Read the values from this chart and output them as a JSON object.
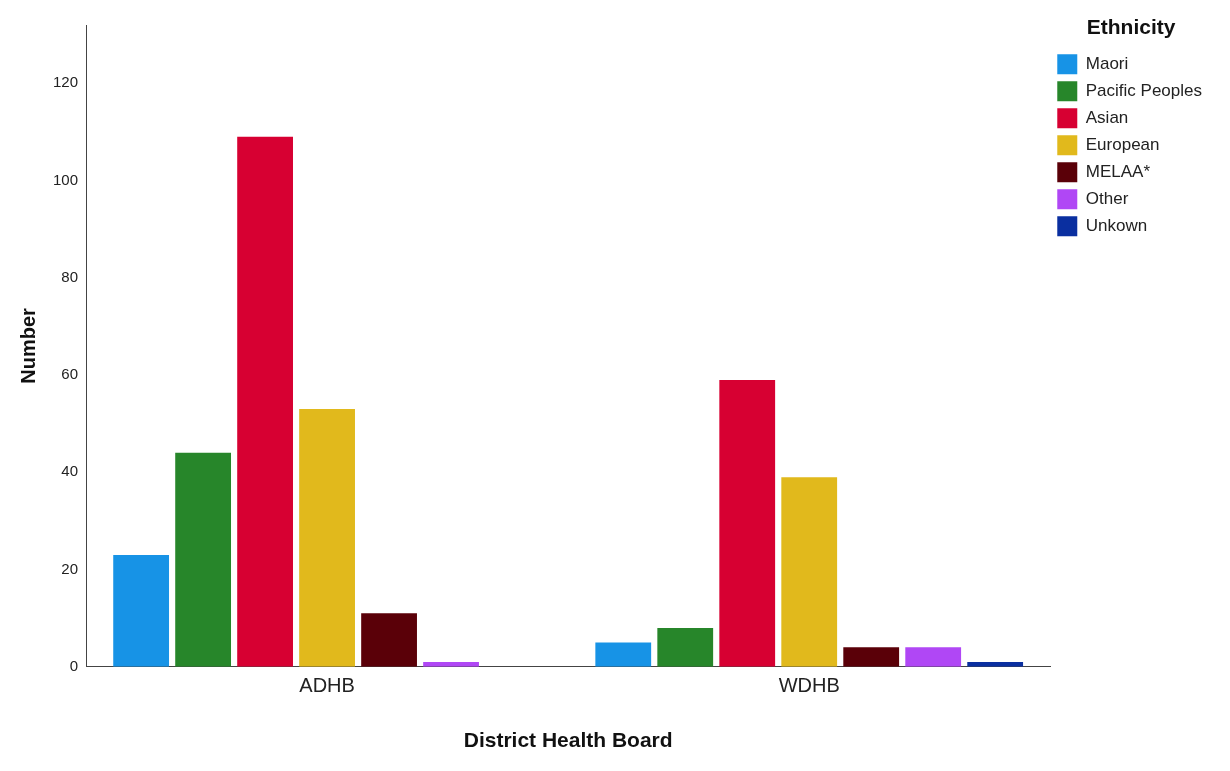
{
  "chart_data": {
    "type": "bar",
    "xlabel": "District Health Board",
    "ylabel": "Number",
    "legend_title": "Ethnicity",
    "categories": [
      "ADHB",
      "WDHB"
    ],
    "series": [
      {
        "name": "Maori",
        "color": "#1793e6",
        "values": [
          23,
          5
        ]
      },
      {
        "name": "Pacific Peoples",
        "color": "#27862a",
        "values": [
          44,
          8
        ]
      },
      {
        "name": "Asian",
        "color": "#d70032",
        "values": [
          109,
          59
        ]
      },
      {
        "name": "European",
        "color": "#e1b91c",
        "values": [
          53,
          39
        ]
      },
      {
        "name": "MELAA*",
        "color": "#5a0008",
        "values": [
          11,
          4
        ]
      },
      {
        "name": "Other",
        "color": "#b047f5",
        "values": [
          1,
          4
        ]
      },
      {
        "name": "Unkown",
        "color": "#0a2fa0",
        "values": [
          0,
          1
        ]
      }
    ],
    "ylim": [
      0,
      132
    ],
    "yticks": [
      0,
      20,
      40,
      60,
      80,
      100,
      120
    ],
    "grid": false,
    "legend": "top right"
  }
}
